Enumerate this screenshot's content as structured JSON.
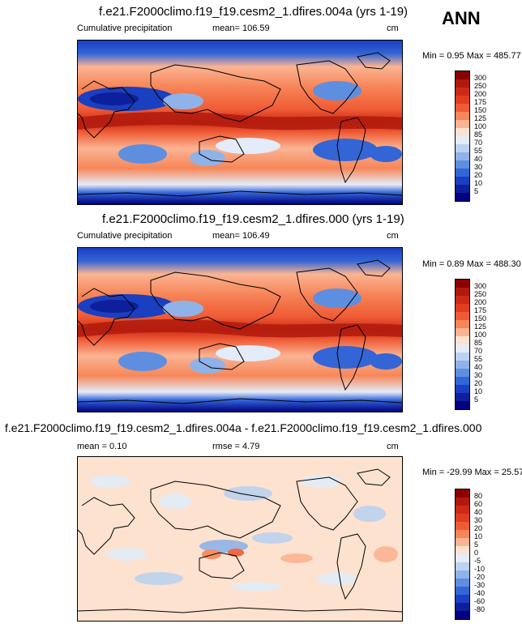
{
  "season_label": "ANN",
  "panels": [
    {
      "title": "f.e21.F2000climo.f19_f19.cesm2_1.dfires.004a (yrs 1-19)",
      "left_label": "Cumulative precipitation",
      "center_label": "mean= 106.59",
      "units": "cm",
      "minmax": "Min =  0.95 Max = 485.77",
      "colorbar": {
        "levels": [
          "300",
          "250",
          "200",
          "175",
          "150",
          "125",
          "100",
          "85",
          "70",
          "55",
          "40",
          "30",
          "20",
          "10",
          "5"
        ],
        "colors": [
          "#8b0000",
          "#b01a0d",
          "#cc2a17",
          "#e23d1f",
          "#ef5b35",
          "#f78659",
          "#fbb493",
          "#fde2cf",
          "#e3ecf8",
          "#bcd2f0",
          "#8fb3e8",
          "#5e8ee0",
          "#3365d6",
          "#1a3fc0",
          "#0d1f9a",
          "#000080"
        ]
      }
    },
    {
      "title": "f.e21.F2000climo.f19_f19.cesm2_1.dfires.000 (yrs 1-19)",
      "left_label": "Cumulative precipitation",
      "center_label": "mean= 106.49",
      "units": "cm",
      "minmax": "Min =  0.89 Max = 488.30",
      "colorbar": {
        "levels": [
          "300",
          "250",
          "200",
          "175",
          "150",
          "125",
          "100",
          "85",
          "70",
          "55",
          "40",
          "30",
          "20",
          "10",
          "5"
        ],
        "colors": [
          "#8b0000",
          "#b01a0d",
          "#cc2a17",
          "#e23d1f",
          "#ef5b35",
          "#f78659",
          "#fbb493",
          "#fde2cf",
          "#e3ecf8",
          "#bcd2f0",
          "#8fb3e8",
          "#5e8ee0",
          "#3365d6",
          "#1a3fc0",
          "#0d1f9a",
          "#000080"
        ]
      }
    },
    {
      "title": "f.e21.F2000climo.f19_f19.cesm2_1.dfires.004a - f.e21.F2000climo.f19_f19.cesm2_1.dfires.000",
      "left_label": "mean =   0.10",
      "center_label": "rmse =   4.79",
      "units": "cm",
      "minmax": "Min = -29.99 Max =  25.57",
      "colorbar": {
        "levels": [
          "80",
          "60",
          "40",
          "30",
          "20",
          "10",
          "5",
          "0",
          "-5",
          "-10",
          "-20",
          "-30",
          "-40",
          "-60",
          "-80"
        ],
        "colors": [
          "#8b0000",
          "#b01a0d",
          "#cc2a17",
          "#e23d1f",
          "#ef5b35",
          "#f78659",
          "#fbb493",
          "#fde2cf",
          "#e3ecf8",
          "#bcd2f0",
          "#8fb3e8",
          "#5e8ee0",
          "#3365d6",
          "#1a3fc0",
          "#0d1f9a",
          "#000080"
        ]
      }
    }
  ]
}
